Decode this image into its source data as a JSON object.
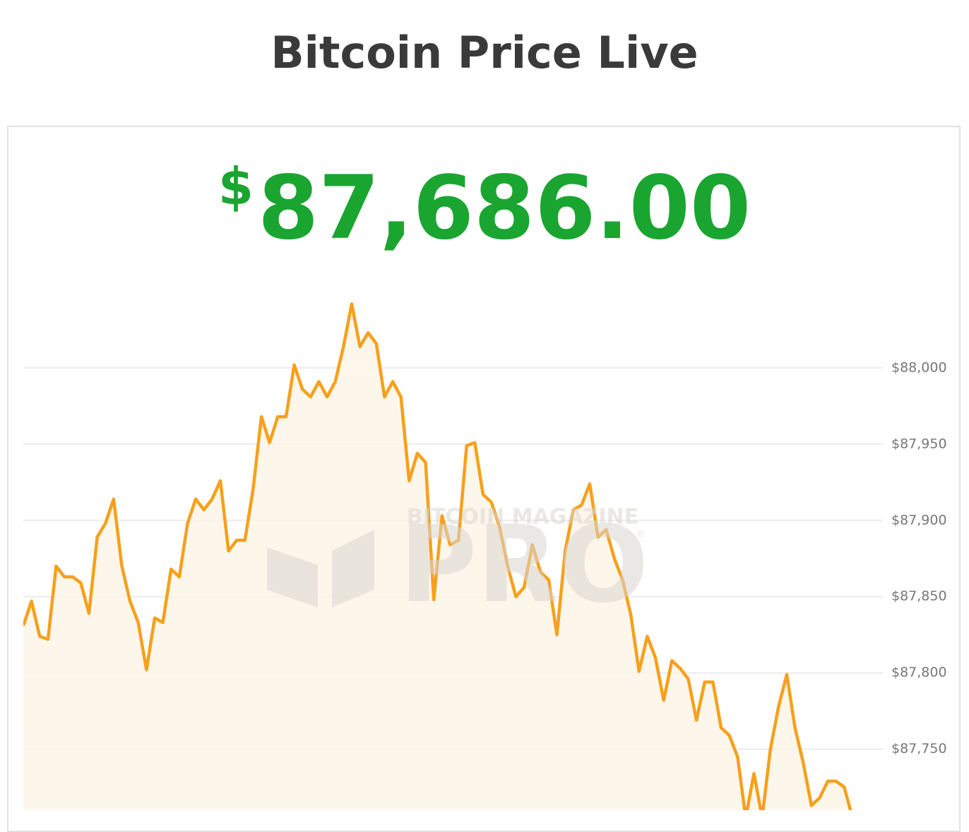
{
  "header": {
    "title": "Bitcoin Price Live"
  },
  "price": {
    "currency": "$",
    "amount": "87,686.00"
  },
  "watermark": {
    "brand": "BITCOIN MAGAZINE",
    "product": "PRO",
    "mark": "®"
  },
  "chart_data": {
    "type": "line",
    "color": "#f7a01c",
    "area_color": "#fdf5e8",
    "grid": true,
    "ylim": [
      87710,
      88056
    ],
    "yticks": [
      {
        "value": 87750,
        "label": "$87,750"
      },
      {
        "value": 87800,
        "label": "$87,800"
      },
      {
        "value": 87850,
        "label": "$87,850"
      },
      {
        "value": 87900,
        "label": "$87,900"
      },
      {
        "value": 87950,
        "label": "$87,950"
      },
      {
        "value": 88000,
        "label": "$88,000"
      }
    ],
    "values": [
      87831,
      87847,
      87824,
      87822,
      87870,
      87863,
      87863,
      87859,
      87839,
      87889,
      87898,
      87914,
      87870,
      87847,
      87833,
      87802,
      87836,
      87833,
      87868,
      87863,
      87898,
      87914,
      87907,
      87914,
      87926,
      87880,
      87887,
      87887,
      87921,
      87968,
      87951,
      87968,
      87968,
      88002,
      87986,
      87981,
      87991,
      87981,
      87991,
      88014,
      88042,
      88014,
      88023,
      88016,
      87981,
      87991,
      87981,
      87926,
      87944,
      87938,
      87848,
      87903,
      87884,
      87887,
      87949,
      87951,
      87917,
      87912,
      87896,
      87870,
      87850,
      87856,
      87884,
      87866,
      87861,
      87825,
      87880,
      87907,
      87910,
      87924,
      87889,
      87894,
      87875,
      87861,
      87838,
      87801,
      87824,
      87810,
      87782,
      87808,
      87803,
      87796,
      87769,
      87794,
      87794,
      87764,
      87759,
      87745,
      87705,
      87734,
      87705,
      87750,
      87778,
      87799,
      87764,
      87741,
      87713,
      87718,
      87729,
      87729,
      87725,
      87705
    ]
  }
}
